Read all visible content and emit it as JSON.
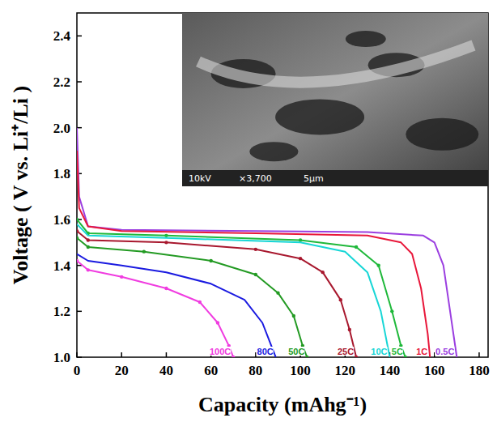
{
  "chart_data": {
    "type": "line",
    "x_label": "Capacity (mAhg⁻¹)",
    "y_label": "Voltage ( V vs. Li⁺/Li )",
    "annotations": [
      "10kV",
      "×3,700",
      "5µm"
    ],
    "xlim": [
      0,
      184
    ],
    "xticks": [
      0,
      20,
      40,
      60,
      80,
      100,
      120,
      140,
      160,
      180
    ],
    "ylim": [
      1.0,
      2.5
    ],
    "yticks": [
      {
        "value": 1.0,
        "label": "1.0"
      },
      1.2,
      1.4,
      1.6,
      1.8,
      {
        "value": 2.0,
        "label": "2.0"
      },
      2.2,
      2.4
    ],
    "grid": false,
    "series": [
      {
        "name": "0.5C",
        "color": "#9b3fe0",
        "marker": "none",
        "line_style": "solid",
        "x": [
          0,
          1,
          5,
          20,
          80,
          130,
          155,
          160,
          164,
          167,
          170
        ],
        "values": [
          2.0,
          1.7,
          1.57,
          1.555,
          1.55,
          1.545,
          1.53,
          1.5,
          1.4,
          1.2,
          1.0
        ]
      },
      {
        "name": "1C",
        "color": "#e8173a",
        "marker": "none",
        "line_style": "solid",
        "x": [
          0,
          1,
          5,
          20,
          80,
          130,
          145,
          150,
          154,
          157,
          158
        ],
        "values": [
          1.9,
          1.65,
          1.57,
          1.55,
          1.54,
          1.53,
          1.5,
          1.45,
          1.3,
          1.1,
          1.0
        ]
      },
      {
        "name": "5C",
        "color": "#1fb83a",
        "marker": "circle",
        "line_style": "solid",
        "x": [
          0,
          5,
          40,
          100,
          125,
          135,
          141,
          145,
          147
        ],
        "values": [
          1.6,
          1.54,
          1.53,
          1.51,
          1.48,
          1.4,
          1.2,
          1.05,
          1.0
        ]
      },
      {
        "name": "10C",
        "color": "#17d6d6",
        "marker": "none",
        "line_style": "solid",
        "x": [
          0,
          5,
          40,
          100,
          120,
          130,
          136,
          140
        ],
        "values": [
          1.58,
          1.53,
          1.52,
          1.5,
          1.46,
          1.37,
          1.2,
          1.0
        ]
      },
      {
        "name": "25C",
        "color": "#a8182e",
        "marker": "circle",
        "line_style": "solid",
        "x": [
          0,
          5,
          40,
          80,
          100,
          110,
          118,
          122,
          125
        ],
        "values": [
          1.55,
          1.51,
          1.5,
          1.47,
          1.43,
          1.37,
          1.25,
          1.12,
          1.0
        ]
      },
      {
        "name": "50C",
        "color": "#239a23",
        "marker": "circle",
        "line_style": "solid",
        "x": [
          0,
          5,
          30,
          60,
          80,
          90,
          97,
          101,
          103
        ],
        "values": [
          1.52,
          1.48,
          1.46,
          1.42,
          1.36,
          1.28,
          1.18,
          1.05,
          1.0
        ]
      },
      {
        "name": "80C",
        "color": "#1a1ae0",
        "marker": "none",
        "line_style": "solid",
        "x": [
          0,
          5,
          20,
          40,
          60,
          75,
          83,
          87,
          89
        ],
        "values": [
          1.45,
          1.42,
          1.4,
          1.37,
          1.32,
          1.25,
          1.15,
          1.05,
          1.0
        ]
      },
      {
        "name": "100C",
        "color": "#f03ce0",
        "marker": "circle",
        "line_style": "solid",
        "x": [
          0,
          5,
          20,
          40,
          55,
          63,
          68,
          70
        ],
        "values": [
          1.42,
          1.38,
          1.35,
          1.3,
          1.24,
          1.15,
          1.05,
          1.0
        ]
      }
    ]
  }
}
